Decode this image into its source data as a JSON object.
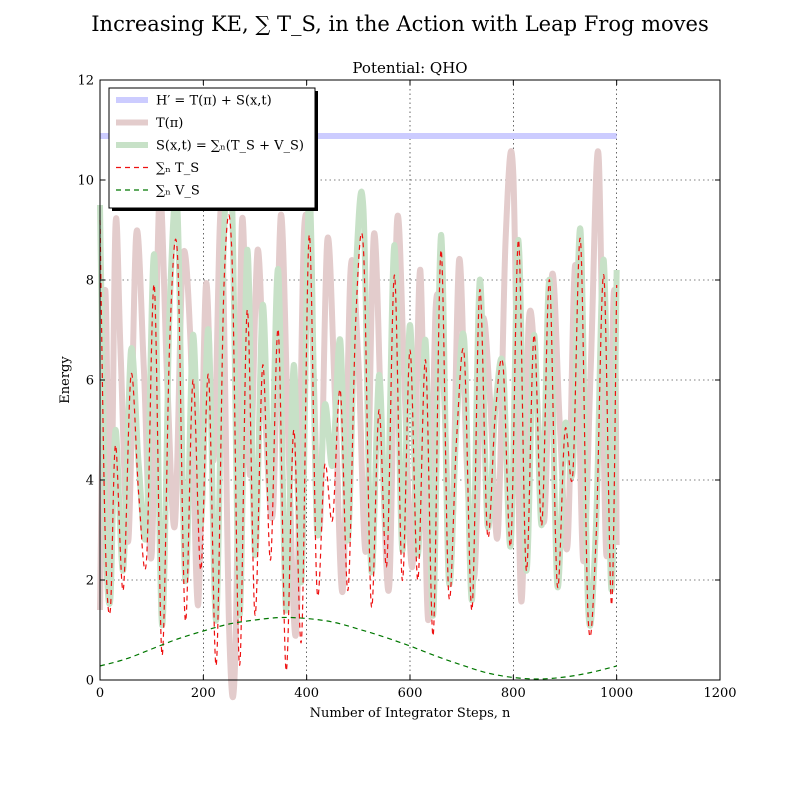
{
  "chart_data": {
    "type": "line",
    "suptitle": "Increasing KE, ∑ T_S, in the Action with Leap Frog moves",
    "title": "Potential: QHO",
    "xlabel": "Number of Integrator Steps, n",
    "ylabel": "Energy",
    "xlim": [
      0,
      1200
    ],
    "ylim": [
      0,
      12
    ],
    "xticks": [
      0,
      200,
      400,
      600,
      800,
      1000,
      1200
    ],
    "yticks": [
      0,
      2,
      4,
      6,
      8,
      10,
      12
    ],
    "grid": true,
    "legend_position": "upper-left",
    "series": [
      {
        "name": "H′ = T(π) + S(x,t)",
        "color": "#ccccff",
        "style": "solid-thick",
        "x": [
          0,
          1000
        ],
        "y": [
          10.88,
          10.88
        ]
      },
      {
        "name": "T(π)",
        "color": "#e3cccc",
        "style": "solid-thick",
        "x": [
          0,
          10,
          20,
          30,
          40,
          55,
          70,
          85,
          100,
          115,
          130,
          145,
          160,
          175,
          190,
          205,
          220,
          235,
          250,
          262,
          275,
          290,
          305,
          320,
          335,
          350,
          365,
          380,
          395,
          410,
          425,
          440,
          455,
          470,
          485,
          500,
          515,
          530,
          545,
          560,
          575,
          590,
          605,
          620,
          635,
          650,
          665,
          680,
          695,
          710,
          725,
          740,
          755,
          770,
          785,
          800,
          815,
          830,
          845,
          860,
          875,
          890,
          905,
          920,
          935,
          950,
          965,
          980,
          995,
          1000
        ],
        "y": [
          1.4,
          7.8,
          2.2,
          9.1,
          6.5,
          2.8,
          8.9,
          6.2,
          2.5,
          9.7,
          6.0,
          3.1,
          8.4,
          6.8,
          1.5,
          7.9,
          4.4,
          9.4,
          1.0,
          0.5,
          9.2,
          4.1,
          8.6,
          5.2,
          3.4,
          9.3,
          4.6,
          1.0,
          9.0,
          7.2,
          3.0,
          8.8,
          5.6,
          1.8,
          8.2,
          6.4,
          2.6,
          8.9,
          5.0,
          1.9,
          9.2,
          5.7,
          2.3,
          8.2,
          1.2,
          7.5,
          5.9,
          2.4,
          8.4,
          4.3,
          2.1,
          7.1,
          5.6,
          2.9,
          8.8,
          10.1,
          1.6,
          7.2,
          5.8,
          3.2,
          8.1,
          5.1,
          2.7,
          8.3,
          2.4,
          6.3,
          10.5,
          2.5,
          7.8,
          2.7
        ]
      },
      {
        "name": "S(x,t) = ∑ₙ(T_S + V_S)",
        "color": "#c7e1c7",
        "style": "solid-thick",
        "x": [
          0,
          10,
          20,
          30,
          45,
          60,
          75,
          90,
          105,
          120,
          135,
          150,
          165,
          180,
          195,
          210,
          225,
          240,
          255,
          270,
          285,
          300,
          315,
          330,
          345,
          360,
          375,
          390,
          405,
          420,
          435,
          450,
          465,
          480,
          495,
          510,
          525,
          540,
          555,
          570,
          585,
          600,
          615,
          630,
          645,
          660,
          675,
          690,
          705,
          720,
          735,
          750,
          765,
          780,
          795,
          810,
          825,
          840,
          855,
          870,
          885,
          900,
          915,
          930,
          945,
          960,
          975,
          990,
          1000
        ],
        "y": [
          9.5,
          3.2,
          1.6,
          5.0,
          2.2,
          6.6,
          4.3,
          3.0,
          8.5,
          1.1,
          7.5,
          9.4,
          2.0,
          6.9,
          3.1,
          7.0,
          1.2,
          8.9,
          9.8,
          1.3,
          8.6,
          2.5,
          7.5,
          3.6,
          8.2,
          1.4,
          6.3,
          2.0,
          9.8,
          3.0,
          5.5,
          4.3,
          6.8,
          2.8,
          8.1,
          9.4,
          2.2,
          6.1,
          3.0,
          8.7,
          2.6,
          7.1,
          2.5,
          6.8,
          1.3,
          8.9,
          2.0,
          5.1,
          6.8,
          1.6,
          8.0,
          3.1,
          5.4,
          6.3,
          2.7,
          8.8,
          2.2,
          6.9,
          3.1,
          8.0,
          1.9,
          5.1,
          4.2,
          9.0,
          1.4,
          3.1,
          8.4,
          1.8,
          8.2
        ]
      },
      {
        "name": "∑ₙ T_S",
        "color": "#ee1111",
        "style": "dashed",
        "x": [
          0,
          10,
          20,
          30,
          45,
          60,
          75,
          90,
          105,
          120,
          135,
          150,
          165,
          180,
          195,
          210,
          225,
          240,
          255,
          270,
          285,
          300,
          315,
          330,
          345,
          360,
          375,
          390,
          405,
          420,
          435,
          450,
          465,
          480,
          495,
          510,
          525,
          540,
          555,
          570,
          585,
          600,
          615,
          630,
          645,
          660,
          675,
          690,
          705,
          720,
          735,
          750,
          765,
          780,
          795,
          810,
          825,
          840,
          855,
          870,
          885,
          900,
          915,
          930,
          945,
          960,
          975,
          990,
          1000
        ],
        "y": [
          9.2,
          2.9,
          1.4,
          4.7,
          1.8,
          6.1,
          3.7,
          2.4,
          7.9,
          0.5,
          6.8,
          8.5,
          1.2,
          6.0,
          2.2,
          6.1,
          0.3,
          7.9,
          8.6,
          0.3,
          7.4,
          1.3,
          6.3,
          2.4,
          7.0,
          0.2,
          5.0,
          0.8,
          8.9,
          1.8,
          4.3,
          3.2,
          5.8,
          1.8,
          7.2,
          8.6,
          1.5,
          5.4,
          2.3,
          8.1,
          2.0,
          6.6,
          2.0,
          6.4,
          0.9,
          8.6,
          1.7,
          4.8,
          6.5,
          1.4,
          7.8,
          2.9,
          5.3,
          6.3,
          2.7,
          8.8,
          2.2,
          6.9,
          3.1,
          8.0,
          1.9,
          5.0,
          4.1,
          8.8,
          1.2,
          2.8,
          8.1,
          1.5,
          7.9
        ]
      },
      {
        "name": "∑ₙ V_S",
        "color": "#007700",
        "style": "dashed",
        "x": [
          0,
          50,
          100,
          150,
          200,
          250,
          300,
          350,
          400,
          450,
          500,
          550,
          600,
          650,
          700,
          750,
          800,
          850,
          900,
          950,
          1000
        ],
        "y": [
          0.28,
          0.42,
          0.62,
          0.82,
          0.98,
          1.12,
          1.2,
          1.25,
          1.23,
          1.16,
          1.02,
          0.86,
          0.68,
          0.48,
          0.3,
          0.14,
          0.05,
          0.02,
          0.06,
          0.15,
          0.28
        ]
      }
    ]
  }
}
